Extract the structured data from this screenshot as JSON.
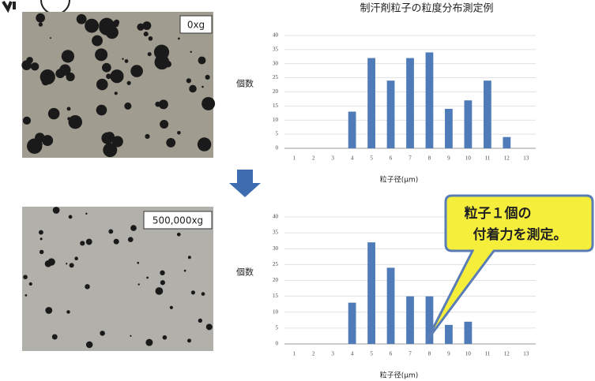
{
  "title": "制汗剤粒子の粒度分布測定例",
  "photos": [
    {
      "label": "0xg"
    },
    {
      "label": "500,000xg"
    }
  ],
  "chart_data": [
    {
      "type": "bar",
      "categories": [
        "1",
        "2",
        "3",
        "4",
        "5",
        "6",
        "7",
        "8",
        "9",
        "10",
        "11",
        "12",
        "13"
      ],
      "values": [
        0,
        0,
        0,
        13,
        32,
        24,
        32,
        34,
        14,
        17,
        24,
        4,
        0
      ],
      "color": "#4f7cb8",
      "ylim": [
        0,
        40
      ],
      "yticks": [
        0,
        5,
        10,
        15,
        20,
        25,
        30,
        35,
        40
      ],
      "grid": true,
      "y_label": "個数",
      "x_label": "粒子径(μm)"
    },
    {
      "type": "bar",
      "categories": [
        "1",
        "2",
        "3",
        "4",
        "5",
        "6",
        "7",
        "8",
        "9",
        "10",
        "11",
        "12",
        "13"
      ],
      "values": [
        0,
        0,
        0,
        13,
        32,
        24,
        15,
        15,
        6,
        7,
        0,
        0,
        0
      ],
      "color": "#4f7cb8",
      "ylim": [
        0,
        40
      ],
      "yticks": [
        0,
        5,
        10,
        15,
        20,
        25,
        30,
        35,
        40
      ],
      "grid": true,
      "y_label": "個数",
      "x_label": "粒子径(μm)",
      "annotation": [
        "粒子１個の",
        "付着力を測定。"
      ]
    }
  ]
}
